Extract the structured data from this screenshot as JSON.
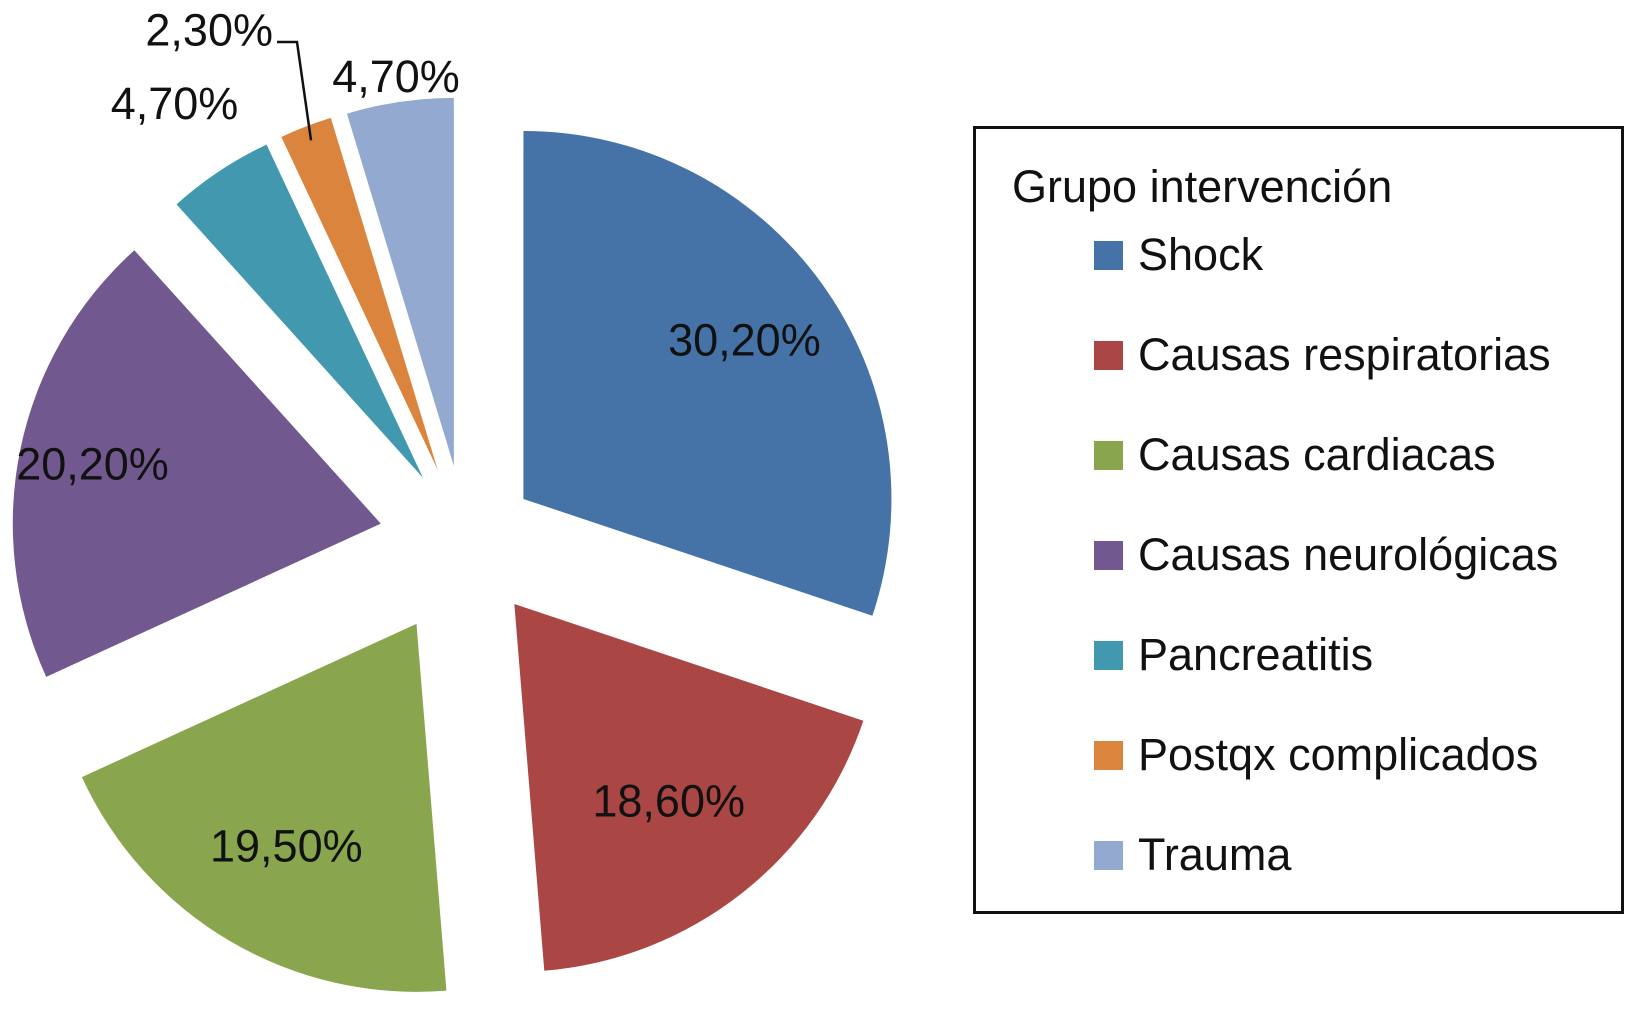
{
  "chart_data": {
    "type": "pie",
    "legend": {
      "title": "Grupo intervención",
      "position": "right"
    },
    "slices": [
      {
        "name": "Shock",
        "value": 30.2,
        "label": "30,20%",
        "color": "#4572A7"
      },
      {
        "name": "Causas respiratorias",
        "value": 18.6,
        "label": "18,60%",
        "color": "#AA4643"
      },
      {
        "name": "Causas cardiacas",
        "value": 19.5,
        "label": "19,50%",
        "color": "#89A54E"
      },
      {
        "name": "Causas neurológicas",
        "value": 20.2,
        "label": "20,20%",
        "color": "#71588F"
      },
      {
        "name": "Pancreatitis",
        "value": 4.7,
        "label": "4,70%",
        "color": "#4198AF"
      },
      {
        "name": "Postqx complicados",
        "value": 2.3,
        "label": "2,30%",
        "color": "#DB843D"
      },
      {
        "name": "Trauma",
        "value": 4.7,
        "label": "4,70%",
        "color": "#93A9CF"
      }
    ],
    "exploded": true
  }
}
